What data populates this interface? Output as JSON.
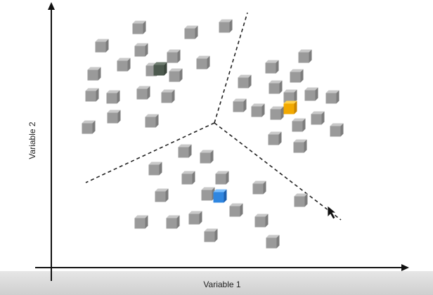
{
  "axes": {
    "x_label": "Variable 1",
    "y_label": "Variable 2"
  }
}
